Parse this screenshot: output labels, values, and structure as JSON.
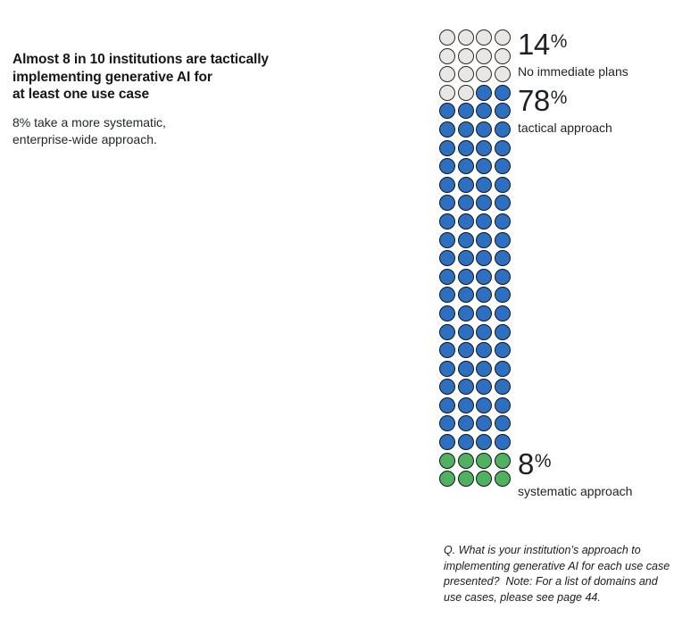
{
  "left_text": {
    "headline": "Almost 8 in 10 institutions are tactically\nimplementing generative AI for\nat least one use case",
    "subtext": "8% take a more systematic,\nenterprise-wide approach."
  },
  "footnote": "Q. What is your institution’s approach to\nimplementing generative AI for each use case\npresented?  Note: For a list of domains and\nuse cases, please see page 44.",
  "chart_data": {
    "type": "pictogram",
    "description": "Waffle chart of 100 circles (4 per row, 25 rows); each circle = 1% of institutions, filled top-to-bottom in reading order",
    "columns": 4,
    "total_units": 100,
    "legend_position": "right of corresponding rows",
    "series": [
      {
        "key": "no-immediate-plans",
        "name": "No immediate plans",
        "value": 14,
        "pct_text": "14",
        "suffix": "%",
        "color": "#e9e6e3",
        "stroke": "#2a2a2a"
      },
      {
        "key": "tactical-approach",
        "name": "tactical approach",
        "value": 78,
        "pct_text": "78",
        "suffix": "%",
        "color": "#2d6fc1",
        "stroke": "#14171a"
      },
      {
        "key": "systematic-approach",
        "name": "systematic approach",
        "value": 8,
        "pct_text": "8",
        "suffix": "%",
        "color": "#4fb261",
        "stroke": "#14171a"
      }
    ]
  }
}
